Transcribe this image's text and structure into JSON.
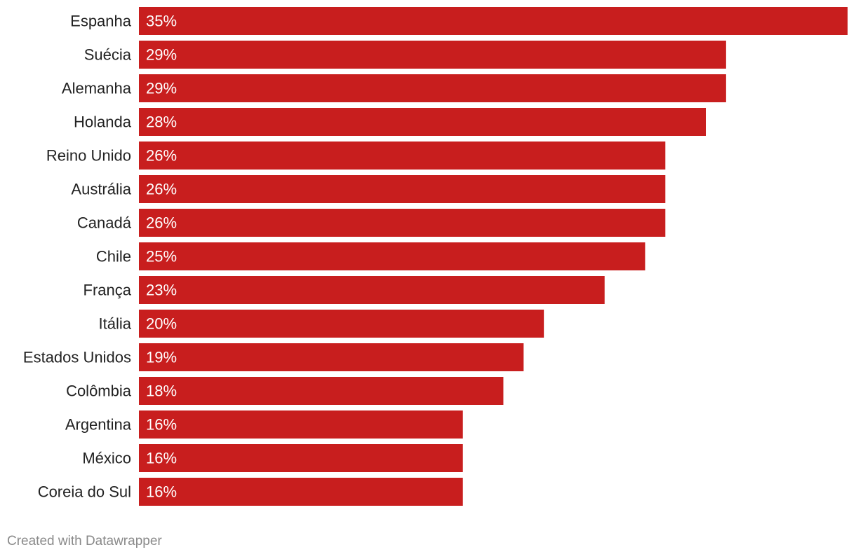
{
  "chart_data": {
    "type": "bar",
    "orientation": "horizontal",
    "categories": [
      "Espanha",
      "Suécia",
      "Alemanha",
      "Holanda",
      "Reino Unido",
      "Austrália",
      "Canadá",
      "Chile",
      "França",
      "Itália",
      "Estados Unidos",
      "Colômbia",
      "Argentina",
      "México",
      "Coreia do Sul"
    ],
    "values": [
      35,
      29,
      29,
      28,
      26,
      26,
      26,
      25,
      23,
      20,
      19,
      18,
      16,
      16,
      16
    ],
    "value_labels": [
      "35%",
      "29%",
      "29%",
      "28%",
      "26%",
      "26%",
      "26%",
      "25%",
      "23%",
      "20%",
      "19%",
      "18%",
      "16%",
      "16%",
      "16%"
    ],
    "unit": "%",
    "xlim": [
      0,
      35
    ],
    "grid": false,
    "bar_color": "#c81e1e",
    "label_color": "#222222",
    "value_label_color": "#ffffff"
  },
  "footer": {
    "credit": "Created with Datawrapper"
  }
}
